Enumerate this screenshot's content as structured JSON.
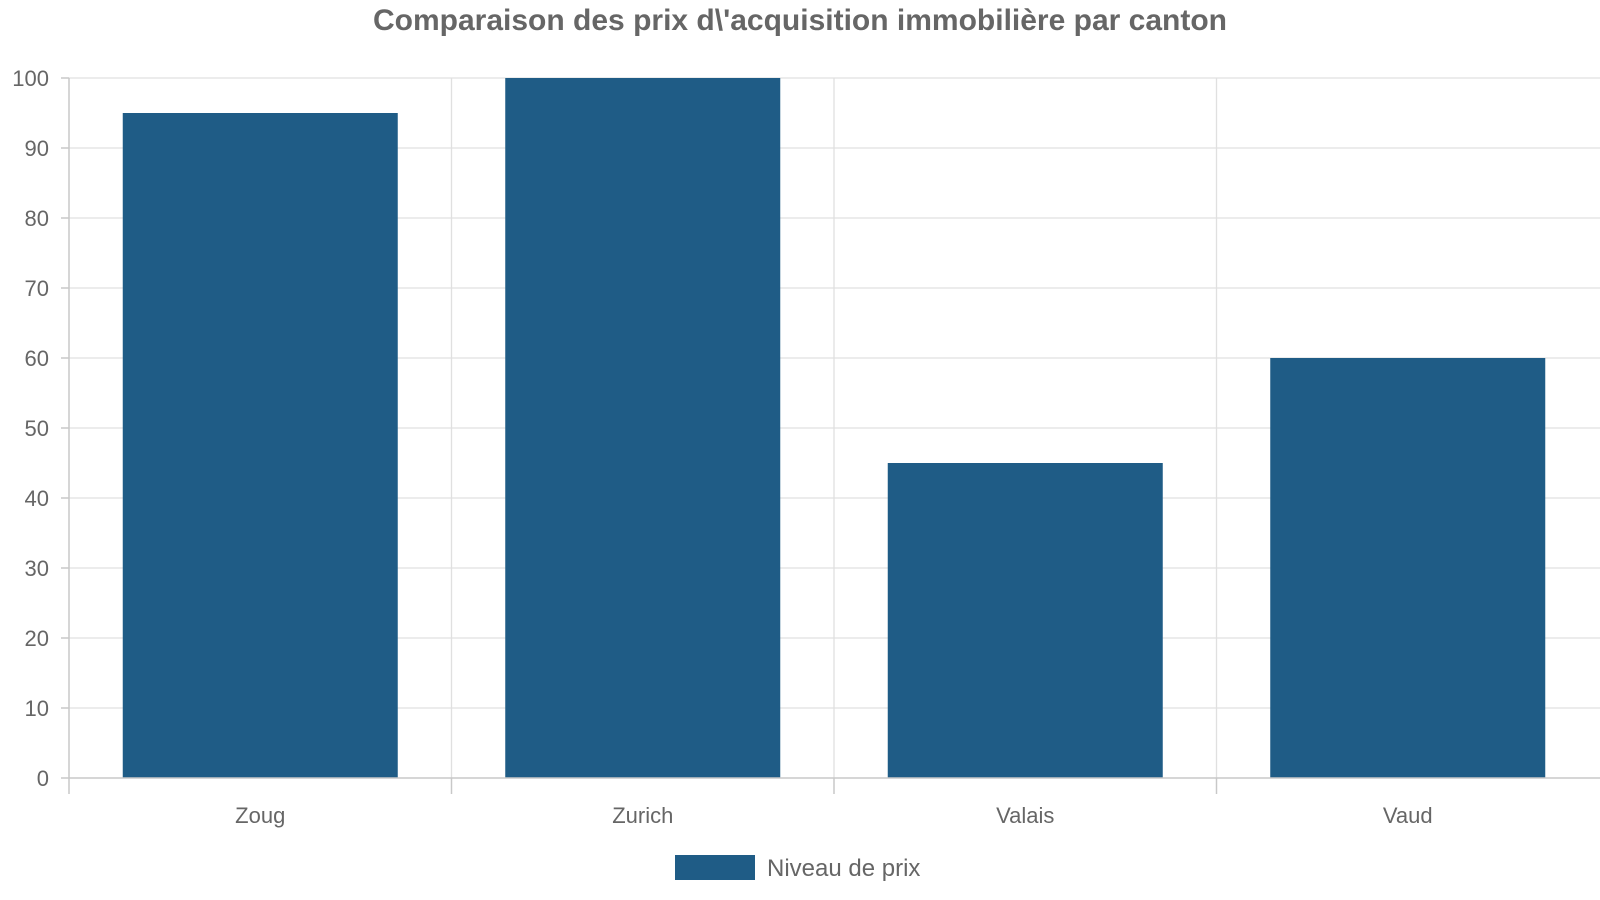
{
  "chart_data": {
    "type": "bar",
    "title": "Comparaison des prix d\\'acquisition immobilière par canton",
    "categories": [
      "Zoug",
      "Zurich",
      "Valais",
      "Vaud"
    ],
    "series": [
      {
        "name": "Niveau de prix",
        "values": [
          95,
          100,
          45,
          60
        ],
        "color": "#1f5c86"
      }
    ],
    "ylim": [
      0,
      100
    ],
    "yticks": [
      0,
      10,
      20,
      30,
      40,
      50,
      60,
      70,
      80,
      90,
      100
    ],
    "grid": true,
    "legend_position": "bottom-center"
  }
}
